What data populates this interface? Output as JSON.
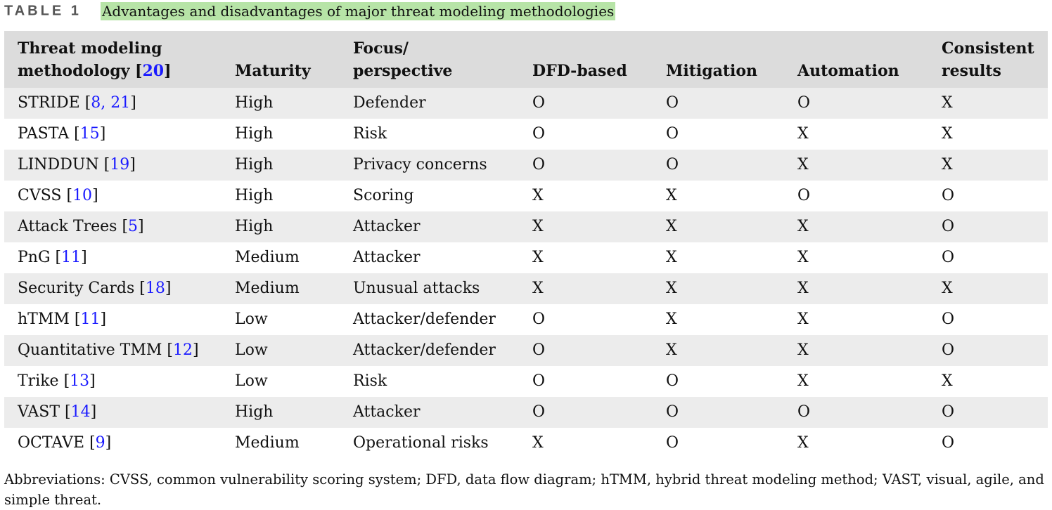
{
  "caption": {
    "label": "TABLE 1",
    "title": "Advantages and disadvantages of major threat modeling methodologies"
  },
  "header": {
    "col1_line1": "Threat modeling",
    "col1_line2": "methodology [",
    "col1_ref": "20",
    "col1_close": "]",
    "maturity": "Maturity",
    "focus_line1": "Focus/",
    "focus_line2": "perspective",
    "dfd": "DFD-based",
    "mitigation": "Mitigation",
    "automation": "Automation",
    "consistent_line1": "Consistent",
    "consistent_line2": "results"
  },
  "rows": [
    {
      "name": "STRIDE",
      "ref": "8, 21",
      "maturity": "High",
      "focus": "Defender",
      "dfd": "O",
      "mitigation": "O",
      "automation": "O",
      "consistent": "X"
    },
    {
      "name": "PASTA",
      "ref": "15",
      "maturity": "High",
      "focus": "Risk",
      "dfd": "O",
      "mitigation": "O",
      "automation": "X",
      "consistent": "X"
    },
    {
      "name": "LINDDUN",
      "ref": "19",
      "maturity": "High",
      "focus": "Privacy concerns",
      "dfd": "O",
      "mitigation": "O",
      "automation": "X",
      "consistent": "X"
    },
    {
      "name": "CVSS",
      "ref": "10",
      "maturity": "High",
      "focus": "Scoring",
      "dfd": "X",
      "mitigation": "X",
      "automation": "O",
      "consistent": "O"
    },
    {
      "name": "Attack Trees",
      "ref": "5",
      "maturity": "High",
      "focus": "Attacker",
      "dfd": "X",
      "mitigation": "X",
      "automation": "X",
      "consistent": "O"
    },
    {
      "name": "PnG",
      "ref": "11",
      "maturity": "Medium",
      "focus": "Attacker",
      "dfd": "X",
      "mitigation": "X",
      "automation": "X",
      "consistent": "O"
    },
    {
      "name": "Security Cards",
      "ref": "18",
      "maturity": "Medium",
      "focus": "Unusual attacks",
      "dfd": "X",
      "mitigation": "X",
      "automation": "X",
      "consistent": "X"
    },
    {
      "name": "hTMM",
      "ref": "11",
      "maturity": "Low",
      "focus": "Attacker/defender",
      "dfd": "O",
      "mitigation": "X",
      "automation": "X",
      "consistent": "O"
    },
    {
      "name": "Quantitative TMM",
      "ref": "12",
      "maturity": "Low",
      "focus": "Attacker/defender",
      "dfd": "O",
      "mitigation": "X",
      "automation": "X",
      "consistent": "O"
    },
    {
      "name": "Trike",
      "ref": "13",
      "maturity": "Low",
      "focus": "Risk",
      "dfd": "O",
      "mitigation": "O",
      "automation": "X",
      "consistent": "X"
    },
    {
      "name": "VAST",
      "ref": "14",
      "maturity": "High",
      "focus": "Attacker",
      "dfd": "O",
      "mitigation": "O",
      "automation": "O",
      "consistent": "O"
    },
    {
      "name": "OCTAVE",
      "ref": "9",
      "maturity": "Medium",
      "focus": "Operational risks",
      "dfd": "X",
      "mitigation": "O",
      "automation": "X",
      "consistent": "O"
    }
  ],
  "footnote": "Abbreviations: CVSS, common vulnerability scoring system; DFD, data flow diagram; hTMM, hybrid threat modeling method; VAST, visual, agile, and simple threat.",
  "colors": {
    "header_bg": "#dcdcdc",
    "shaded_row_bg": "#ececec",
    "reference_link": "#1a1aff",
    "caption_highlight": "#b7e4a7"
  }
}
